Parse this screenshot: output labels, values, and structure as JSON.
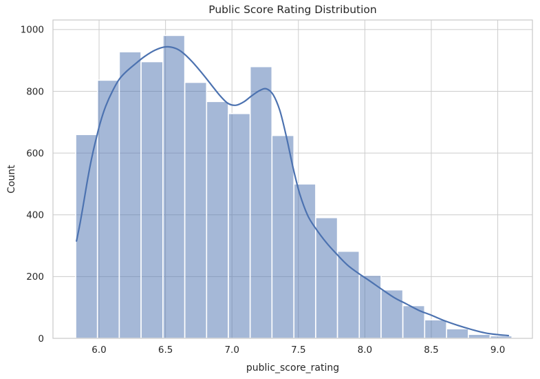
{
  "figure": {
    "title": "Public Score Rating Distribution",
    "xlabel": "public_score_rating",
    "ylabel": "Count"
  },
  "chart_data": {
    "type": "histogram",
    "overlay": "kde-line",
    "title": "Public Score Rating Distribution",
    "xlabel": "public_score_rating",
    "ylabel": "Count",
    "bin_edges": [
      5.824,
      5.988,
      6.152,
      6.316,
      6.481,
      6.645,
      6.809,
      6.973,
      7.137,
      7.301,
      7.466,
      7.63,
      7.794,
      7.958,
      8.122,
      8.286,
      8.45,
      8.615,
      8.779,
      8.943,
      9.107
    ],
    "counts": [
      660,
      836,
      928,
      896,
      981,
      829,
      767,
      728,
      880,
      657,
      500,
      391,
      282,
      204,
      157,
      106,
      60,
      31,
      13,
      8
    ],
    "kde": {
      "x": [
        5.83,
        5.86,
        5.89,
        5.92,
        5.95,
        5.98,
        6.01,
        6.05,
        6.1,
        6.15,
        6.2,
        6.27,
        6.34,
        6.42,
        6.5,
        6.57,
        6.63,
        6.7,
        6.78,
        6.85,
        6.91,
        6.97,
        7.03,
        7.09,
        7.15,
        7.21,
        7.26,
        7.31,
        7.36,
        7.41,
        7.46,
        7.51,
        7.57,
        7.63,
        7.71,
        7.79,
        7.87,
        7.95,
        8.03,
        8.12,
        8.22,
        8.31,
        8.41,
        8.5,
        8.6,
        8.7,
        8.8,
        8.9,
        9.0,
        9.08
      ],
      "y": [
        315,
        380,
        455,
        530,
        595,
        650,
        700,
        752,
        800,
        838,
        862,
        888,
        912,
        933,
        944,
        940,
        925,
        896,
        856,
        818,
        786,
        761,
        755,
        766,
        786,
        803,
        808,
        789,
        738,
        652,
        552,
        468,
        398,
        356,
        310,
        272,
        237,
        211,
        188,
        161,
        132,
        112,
        90,
        75,
        57,
        42,
        29,
        18,
        12,
        9
      ]
    },
    "x_ticks": [
      6.0,
      6.5,
      7.0,
      7.5,
      8.0,
      8.5,
      9.0
    ],
    "x_tick_labels": [
      "6.0",
      "6.5",
      "7.0",
      "7.5",
      "8.0",
      "8.5",
      "9.0"
    ],
    "y_ticks": [
      0,
      200,
      400,
      600,
      800,
      1000
    ],
    "y_tick_labels": [
      "0",
      "200",
      "400",
      "600",
      "800",
      "1000"
    ],
    "xlim": [
      5.653,
      9.261
    ],
    "ylim": [
      0,
      1031
    ],
    "grid": true,
    "legend": false,
    "colors": {
      "bar_fill": "#4c72b0",
      "bar_fill_opacity": "0.5",
      "bar_edge": "#ffffff",
      "kde_line": "#4c72b0",
      "grid_line": "#cccccc",
      "spine": "#c9c9c9",
      "text": "#262626",
      "background": "#ffffff"
    },
    "layout": {
      "fig_width": 785,
      "fig_height": 550,
      "plot_left": 77,
      "plot_right": 774,
      "plot_top": 29,
      "plot_bottom": 491,
      "title_baseline_y": 19,
      "x_tick_baseline_y": 512,
      "x_label_baseline_y": 538,
      "y_tick_right_x": 64,
      "y_label_center_x": 21
    }
  }
}
